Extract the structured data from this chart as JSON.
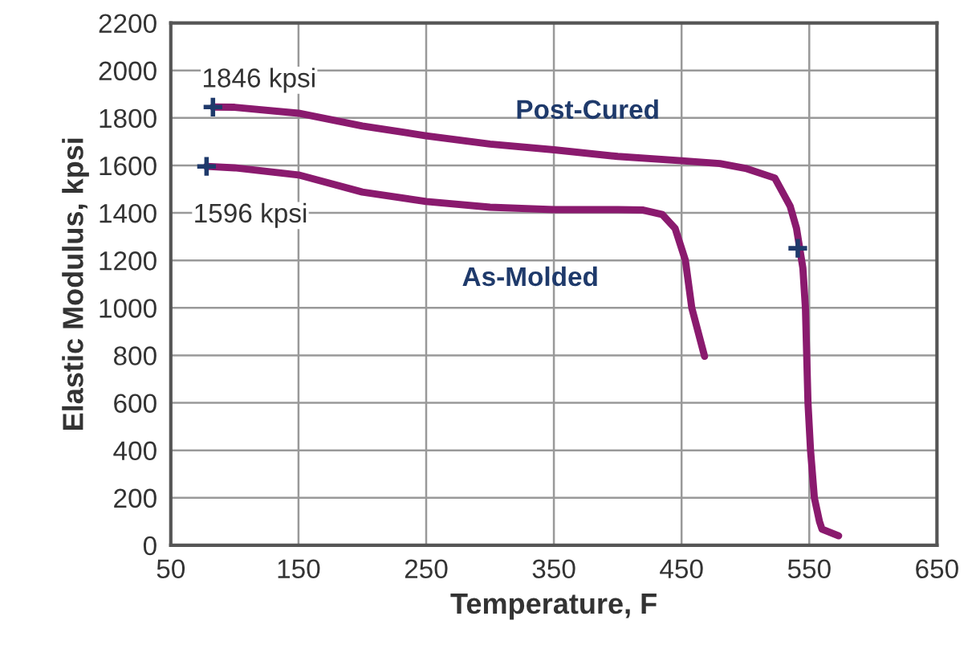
{
  "chart_data": {
    "type": "line",
    "xlabel": "Temperature, F",
    "ylabel": "Elastic Modulus, kpsi",
    "xlim": [
      50,
      650
    ],
    "xticks": [
      50,
      150,
      250,
      350,
      450,
      550,
      650
    ],
    "ylim": [
      0,
      2200
    ],
    "yticks": [
      0,
      200,
      400,
      600,
      800,
      1000,
      1200,
      1400,
      1600,
      1800,
      2000,
      2200
    ],
    "grid": true,
    "legend": false,
    "marker": "none",
    "line_style": "solid",
    "series": [
      {
        "name": "Post-Cured",
        "color": "#8a1a6e",
        "x": [
          83,
          100,
          150,
          200,
          250,
          300,
          350,
          400,
          450,
          480,
          500,
          523,
          535,
          540,
          545,
          547,
          548,
          549,
          551,
          554,
          558,
          560,
          573
        ],
        "values": [
          1846,
          1845,
          1820,
          1766,
          1725,
          1690,
          1666,
          1638,
          1620,
          1608,
          1588,
          1547,
          1429,
          1335,
          1168,
          1000,
          800,
          600,
          400,
          200,
          100,
          68,
          40
        ]
      },
      {
        "name": "As-Molded",
        "color": "#8a1a6e",
        "x": [
          78,
          100,
          150,
          200,
          250,
          300,
          350,
          400,
          420,
          435,
          445,
          453,
          458,
          468
        ],
        "values": [
          1596,
          1590,
          1560,
          1488,
          1448,
          1424,
          1414,
          1414,
          1412,
          1393,
          1334,
          1200,
          1000,
          796
        ]
      },
      {
        "type": "scatter",
        "color": "#1f3a6b",
        "marker": "cross",
        "x": [
          83,
          78,
          541
        ],
        "values": [
          1846,
          1596,
          1251
        ]
      }
    ],
    "annotations": [
      {
        "text": "1846 kpsi",
        "x": 83,
        "y": 1846
      },
      {
        "text": "1596 kpsi",
        "x": 78,
        "y": 1596
      }
    ]
  }
}
